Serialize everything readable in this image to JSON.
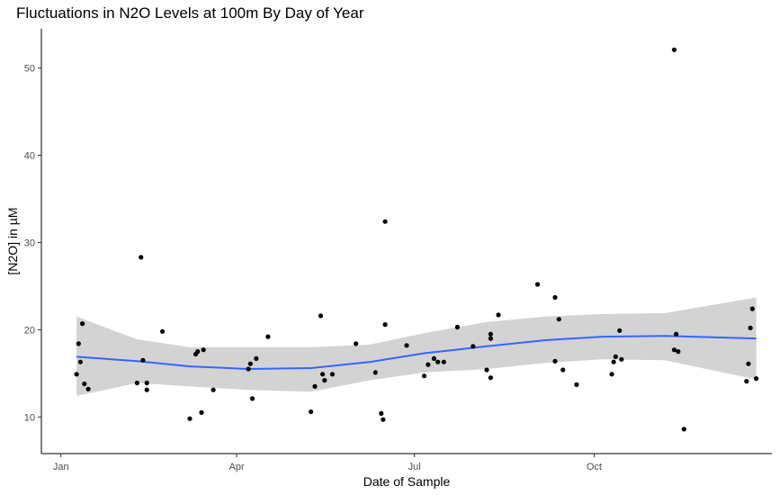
{
  "chart_data": {
    "type": "scatter",
    "title": "Fluctuations in N2O Levels at 100m By Day of Year",
    "xlabel": "Date of Sample",
    "ylabel": "[N2O] in µM",
    "x_unit": "month-day",
    "x_ticks": [
      {
        "label": "Jan",
        "x": "01-01"
      },
      {
        "label": "Apr",
        "x": "04-01"
      },
      {
        "label": "Jul",
        "x": "07-01"
      },
      {
        "label": "Oct",
        "x": "10-01"
      }
    ],
    "y_ticks": [
      10,
      20,
      30,
      40,
      50
    ],
    "xlim": [
      "12-22",
      "12-31"
    ],
    "ylim": [
      5.8,
      54.5
    ],
    "grid": false,
    "legend": "none",
    "colors": {
      "points": "#000000",
      "smooth_line": "#3366ff",
      "band": "#d3d3d3",
      "axis": "#000000"
    },
    "series": [
      {
        "points": [
          {
            "x": "01-09",
            "y": 14.9
          },
          {
            "x": "01-10",
            "y": 18.4
          },
          {
            "x": "01-11",
            "y": 16.3
          },
          {
            "x": "01-12",
            "y": 20.7
          },
          {
            "x": "01-13",
            "y": 13.8
          },
          {
            "x": "01-15",
            "y": 13.2
          },
          {
            "x": "02-09",
            "y": 13.9
          },
          {
            "x": "02-11",
            "y": 28.3
          },
          {
            "x": "02-12",
            "y": 16.5
          },
          {
            "x": "02-14",
            "y": 13.9
          },
          {
            "x": "02-14",
            "y": 13.1
          },
          {
            "x": "02-22",
            "y": 19.8
          },
          {
            "x": "03-08",
            "y": 9.8
          },
          {
            "x": "03-11",
            "y": 17.2
          },
          {
            "x": "03-12",
            "y": 17.5
          },
          {
            "x": "03-14",
            "y": 10.5
          },
          {
            "x": "03-15",
            "y": 17.7
          },
          {
            "x": "03-20",
            "y": 13.1
          },
          {
            "x": "04-07",
            "y": 15.5
          },
          {
            "x": "04-08",
            "y": 16.1
          },
          {
            "x": "04-09",
            "y": 12.1
          },
          {
            "x": "04-11",
            "y": 16.7
          },
          {
            "x": "04-17",
            "y": 19.2
          },
          {
            "x": "05-09",
            "y": 10.6
          },
          {
            "x": "05-11",
            "y": 13.5
          },
          {
            "x": "05-14",
            "y": 21.6
          },
          {
            "x": "05-15",
            "y": 14.9
          },
          {
            "x": "05-16",
            "y": 14.2
          },
          {
            "x": "05-20",
            "y": 14.9
          },
          {
            "x": "06-01",
            "y": 18.4
          },
          {
            "x": "06-11",
            "y": 15.1
          },
          {
            "x": "06-14",
            "y": 10.4
          },
          {
            "x": "06-15",
            "y": 9.7
          },
          {
            "x": "06-16",
            "y": 32.4
          },
          {
            "x": "06-16",
            "y": 20.6
          },
          {
            "x": "06-27",
            "y": 18.2
          },
          {
            "x": "07-06",
            "y": 14.7
          },
          {
            "x": "07-08",
            "y": 16.0
          },
          {
            "x": "07-11",
            "y": 16.7
          },
          {
            "x": "07-13",
            "y": 16.3
          },
          {
            "x": "07-16",
            "y": 16.3
          },
          {
            "x": "07-23",
            "y": 20.3
          },
          {
            "x": "07-31",
            "y": 18.1
          },
          {
            "x": "08-07",
            "y": 15.4
          },
          {
            "x": "08-09",
            "y": 14.5
          },
          {
            "x": "08-09",
            "y": 19.0
          },
          {
            "x": "08-09",
            "y": 19.5
          },
          {
            "x": "08-13",
            "y": 21.7
          },
          {
            "x": "09-02",
            "y": 25.2
          },
          {
            "x": "09-11",
            "y": 16.4
          },
          {
            "x": "09-11",
            "y": 23.7
          },
          {
            "x": "09-13",
            "y": 21.2
          },
          {
            "x": "09-15",
            "y": 15.4
          },
          {
            "x": "09-22",
            "y": 13.7
          },
          {
            "x": "10-10",
            "y": 14.9
          },
          {
            "x": "10-11",
            "y": 16.3
          },
          {
            "x": "10-12",
            "y": 16.9
          },
          {
            "x": "10-14",
            "y": 19.9
          },
          {
            "x": "10-15",
            "y": 16.6
          },
          {
            "x": "11-11",
            "y": 52.1
          },
          {
            "x": "11-11",
            "y": 17.7
          },
          {
            "x": "11-12",
            "y": 19.5
          },
          {
            "x": "11-13",
            "y": 17.5
          },
          {
            "x": "11-16",
            "y": 8.6
          },
          {
            "x": "12-18",
            "y": 14.1
          },
          {
            "x": "12-19",
            "y": 16.1
          },
          {
            "x": "12-20",
            "y": 20.2
          },
          {
            "x": "12-21",
            "y": 22.4
          },
          {
            "x": "12-23",
            "y": 14.4
          }
        ]
      }
    ],
    "smooth": {
      "line": [
        {
          "x": "01-09",
          "y": 16.9
        },
        {
          "x": "02-09",
          "y": 16.4
        },
        {
          "x": "03-08",
          "y": 15.8
        },
        {
          "x": "04-07",
          "y": 15.5
        },
        {
          "x": "05-09",
          "y": 15.6
        },
        {
          "x": "06-08",
          "y": 16.3
        },
        {
          "x": "07-06",
          "y": 17.3
        },
        {
          "x": "08-07",
          "y": 18.1
        },
        {
          "x": "09-06",
          "y": 18.8
        },
        {
          "x": "10-05",
          "y": 19.2
        },
        {
          "x": "11-06",
          "y": 19.3
        },
        {
          "x": "12-23",
          "y": 19.0
        }
      ],
      "upper": [
        {
          "x": "01-09",
          "y": 21.5
        },
        {
          "x": "02-09",
          "y": 18.9
        },
        {
          "x": "03-08",
          "y": 18.0
        },
        {
          "x": "04-07",
          "y": 18.0
        },
        {
          "x": "05-09",
          "y": 18.0
        },
        {
          "x": "06-08",
          "y": 18.3
        },
        {
          "x": "07-06",
          "y": 19.6
        },
        {
          "x": "08-07",
          "y": 20.9
        },
        {
          "x": "09-06",
          "y": 21.5
        },
        {
          "x": "10-05",
          "y": 21.8
        },
        {
          "x": "11-06",
          "y": 21.9
        },
        {
          "x": "12-23",
          "y": 23.7
        }
      ],
      "lower": [
        {
          "x": "01-09",
          "y": 12.4
        },
        {
          "x": "02-09",
          "y": 13.9
        },
        {
          "x": "03-08",
          "y": 13.5
        },
        {
          "x": "04-07",
          "y": 13.1
        },
        {
          "x": "05-09",
          "y": 12.9
        },
        {
          "x": "06-08",
          "y": 14.2
        },
        {
          "x": "07-06",
          "y": 15.1
        },
        {
          "x": "08-07",
          "y": 15.5
        },
        {
          "x": "09-06",
          "y": 16.2
        },
        {
          "x": "10-05",
          "y": 16.6
        },
        {
          "x": "11-06",
          "y": 16.5
        },
        {
          "x": "12-23",
          "y": 14.3
        }
      ]
    }
  }
}
